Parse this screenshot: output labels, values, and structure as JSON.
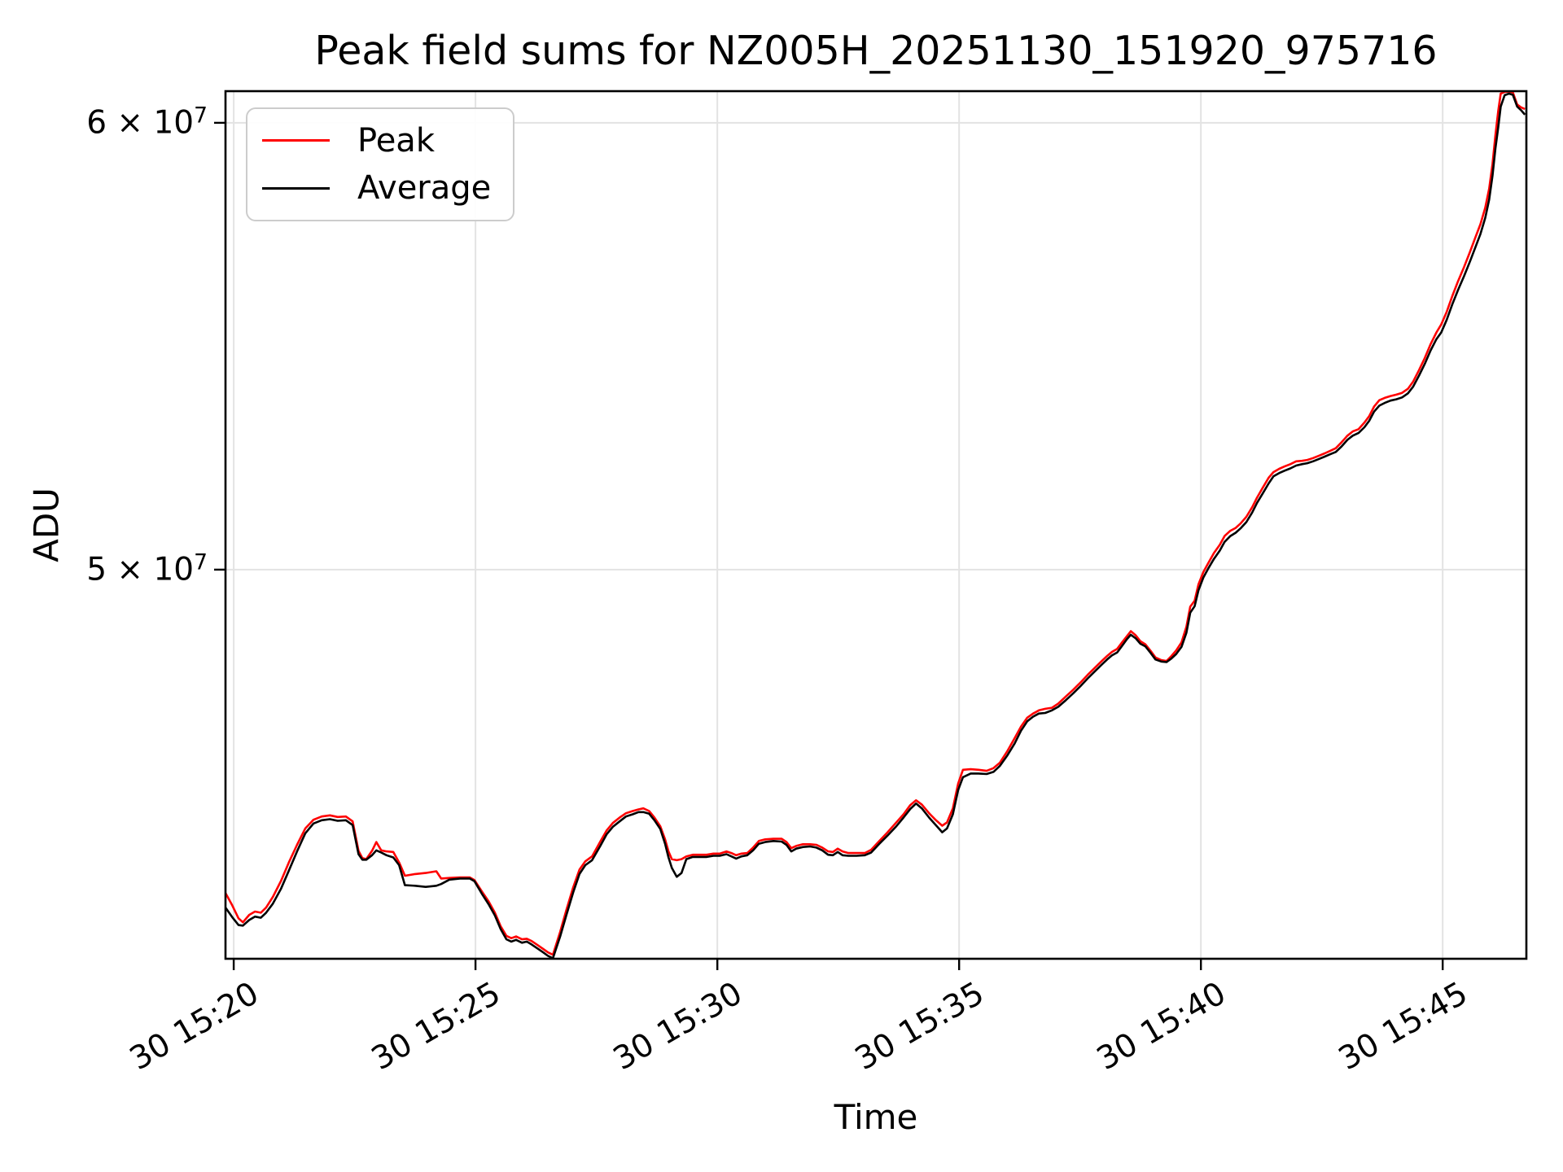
{
  "title": "Peak field sums for NZ005H_20251130_151920_975716",
  "legend": {
    "items": [
      {
        "label": "Peak",
        "color": "#ff0000"
      },
      {
        "label": "Average",
        "color": "#000000"
      }
    ]
  },
  "axes": {
    "xlabel": "Time",
    "ylabel": "ADU",
    "xticks": [
      {
        "t": 20,
        "label": "30 15:20"
      },
      {
        "t": 25,
        "label": "30 15:25"
      },
      {
        "t": 30,
        "label": "30 15:30"
      },
      {
        "t": 35,
        "label": "30 15:35"
      },
      {
        "t": 40,
        "label": "30 15:40"
      },
      {
        "t": 45,
        "label": "30 15:45"
      }
    ],
    "yticks": [
      {
        "v_e7": 6.0,
        "base": "6 × 10",
        "exp": "7"
      },
      {
        "v_e7": 5.0,
        "base": "5 × 10",
        "exp": "7"
      }
    ]
  },
  "colors": {
    "grid": "#e3e3e3",
    "peak": "#ff0000",
    "average": "#000000"
  },
  "chart_data": {
    "type": "line",
    "title": "Peak field sums for NZ005H_20251130_151920_975716",
    "xlabel": "Time",
    "ylabel": "ADU",
    "x_unit": "minutes after 15:00 on day 30",
    "y_unit": "ADU × 1e7",
    "ylog": true,
    "grid": true,
    "legend_position": "upper left",
    "xlim": [
      19.83,
      46.73
    ],
    "ylim_e7": [
      4.266,
      6.078
    ],
    "x": [
      19.83,
      19.97,
      20.1,
      20.19,
      20.32,
      20.44,
      20.56,
      20.67,
      20.81,
      20.98,
      21.14,
      21.31,
      21.48,
      21.65,
      21.82,
      21.99,
      22.15,
      22.32,
      22.46,
      22.58,
      22.66,
      22.74,
      22.86,
      22.95,
      23.05,
      23.16,
      23.3,
      23.42,
      23.54,
      23.75,
      23.97,
      24.19,
      24.29,
      24.46,
      24.68,
      24.88,
      24.98,
      25.13,
      25.27,
      25.4,
      25.52,
      25.64,
      25.74,
      25.84,
      25.96,
      26.06,
      26.16,
      26.28,
      26.4,
      26.5,
      26.6,
      26.75,
      26.88,
      27.02,
      27.15,
      27.27,
      27.41,
      27.58,
      27.71,
      27.84,
      27.98,
      28.11,
      28.25,
      28.37,
      28.47,
      28.59,
      28.7,
      28.82,
      28.92,
      28.99,
      29.06,
      29.16,
      29.26,
      29.36,
      29.49,
      29.65,
      29.78,
      29.92,
      30.05,
      30.19,
      30.29,
      30.39,
      30.5,
      30.62,
      30.74,
      30.86,
      30.99,
      31.16,
      31.33,
      31.43,
      31.53,
      31.63,
      31.77,
      31.92,
      32.05,
      32.17,
      32.29,
      32.39,
      32.49,
      32.59,
      32.71,
      32.88,
      33.05,
      33.18,
      33.35,
      33.52,
      33.69,
      33.85,
      33.99,
      34.11,
      34.23,
      34.38,
      34.51,
      34.65,
      34.75,
      34.87,
      34.98,
      35.08,
      35.24,
      35.4,
      35.57,
      35.71,
      35.84,
      35.99,
      36.15,
      36.28,
      36.41,
      36.53,
      36.65,
      36.78,
      36.92,
      37.05,
      37.21,
      37.36,
      37.51,
      37.66,
      37.81,
      37.95,
      38.06,
      38.16,
      38.27,
      38.37,
      38.47,
      38.55,
      38.65,
      38.75,
      38.85,
      38.96,
      39.06,
      39.18,
      39.29,
      39.39,
      39.49,
      39.6,
      39.7,
      39.78,
      39.87,
      39.95,
      40.05,
      40.15,
      40.27,
      40.39,
      40.49,
      40.61,
      40.72,
      40.82,
      40.94,
      41.06,
      41.16,
      41.28,
      41.4,
      41.5,
      41.62,
      41.73,
      41.85,
      41.97,
      42.09,
      42.2,
      42.32,
      42.44,
      42.56,
      42.67,
      42.79,
      42.91,
      43.03,
      43.14,
      43.26,
      43.38,
      43.48,
      43.58,
      43.69,
      43.8,
      43.92,
      44.04,
      44.16,
      44.28,
      44.39,
      44.51,
      44.63,
      44.75,
      44.87,
      44.97,
      45.08,
      45.2,
      45.32,
      45.44,
      45.56,
      45.67,
      45.78,
      45.88,
      45.96,
      46.03,
      46.09,
      46.15,
      46.2,
      46.28,
      46.37,
      46.45,
      46.54,
      46.62,
      46.7
    ],
    "series": [
      {
        "name": "Peak",
        "color": "#ff0000",
        "values_e7": [
          4.382,
          4.36,
          4.337,
          4.33,
          4.343,
          4.349,
          4.347,
          4.356,
          4.375,
          4.404,
          4.437,
          4.469,
          4.499,
          4.515,
          4.521,
          4.523,
          4.52,
          4.521,
          4.512,
          4.458,
          4.445,
          4.443,
          4.458,
          4.474,
          4.459,
          4.457,
          4.456,
          4.437,
          4.413,
          4.416,
          4.418,
          4.421,
          4.408,
          4.409,
          4.41,
          4.41,
          4.405,
          4.385,
          4.367,
          4.347,
          4.323,
          4.306,
          4.302,
          4.305,
          4.3,
          4.301,
          4.297,
          4.29,
          4.283,
          4.277,
          4.273,
          4.313,
          4.352,
          4.392,
          4.424,
          4.439,
          4.448,
          4.475,
          4.495,
          4.509,
          4.519,
          4.527,
          4.531,
          4.534,
          4.536,
          4.531,
          4.519,
          4.503,
          4.479,
          4.457,
          4.443,
          4.441,
          4.443,
          4.448,
          4.451,
          4.451,
          4.451,
          4.453,
          4.453,
          4.457,
          4.454,
          4.45,
          4.453,
          4.454,
          4.464,
          4.476,
          4.479,
          4.48,
          4.48,
          4.474,
          4.463,
          4.467,
          4.47,
          4.47,
          4.469,
          4.464,
          4.457,
          4.456,
          4.462,
          4.457,
          4.454,
          4.454,
          4.454,
          4.46,
          4.476,
          4.492,
          4.509,
          4.525,
          4.542,
          4.551,
          4.543,
          4.527,
          4.515,
          4.504,
          4.51,
          4.536,
          4.582,
          4.608,
          4.609,
          4.608,
          4.606,
          4.611,
          4.621,
          4.642,
          4.668,
          4.69,
          4.707,
          4.715,
          4.721,
          4.724,
          4.726,
          4.734,
          4.748,
          4.761,
          4.775,
          4.79,
          4.804,
          4.817,
          4.827,
          4.835,
          4.841,
          4.854,
          4.866,
          4.876,
          4.868,
          4.856,
          4.85,
          4.837,
          4.824,
          4.819,
          4.817,
          4.827,
          4.838,
          4.854,
          4.885,
          4.925,
          4.937,
          4.97,
          4.995,
          5.013,
          5.034,
          5.051,
          5.069,
          5.08,
          5.086,
          5.095,
          5.109,
          5.129,
          5.149,
          5.17,
          5.191,
          5.203,
          5.21,
          5.215,
          5.22,
          5.226,
          5.227,
          5.229,
          5.233,
          5.238,
          5.243,
          5.248,
          5.254,
          5.267,
          5.281,
          5.29,
          5.295,
          5.309,
          5.323,
          5.344,
          5.358,
          5.363,
          5.367,
          5.37,
          5.374,
          5.383,
          5.399,
          5.424,
          5.451,
          5.482,
          5.508,
          5.526,
          5.554,
          5.591,
          5.625,
          5.657,
          5.691,
          5.724,
          5.757,
          5.796,
          5.841,
          5.9,
          5.97,
          6.03,
          6.072,
          6.076,
          6.077,
          6.075,
          6.045,
          6.038,
          6.034
        ]
      },
      {
        "name": "Average",
        "color": "#000000",
        "values_e7": [
          4.356,
          4.339,
          4.325,
          4.324,
          4.334,
          4.34,
          4.338,
          4.347,
          4.363,
          4.39,
          4.422,
          4.457,
          4.49,
          4.508,
          4.514,
          4.516,
          4.513,
          4.514,
          4.505,
          4.452,
          4.442,
          4.442,
          4.45,
          4.459,
          4.455,
          4.45,
          4.446,
          4.432,
          4.396,
          4.395,
          4.393,
          4.395,
          4.398,
          4.406,
          4.408,
          4.408,
          4.403,
          4.381,
          4.362,
          4.342,
          4.318,
          4.3,
          4.296,
          4.299,
          4.294,
          4.296,
          4.291,
          4.284,
          4.277,
          4.271,
          4.267,
          4.305,
          4.343,
          4.383,
          4.416,
          4.432,
          4.441,
          4.467,
          4.488,
          4.502,
          4.512,
          4.521,
          4.525,
          4.529,
          4.529,
          4.526,
          4.514,
          4.498,
          4.471,
          4.446,
          4.427,
          4.411,
          4.418,
          4.443,
          4.447,
          4.447,
          4.447,
          4.449,
          4.449,
          4.452,
          4.448,
          4.444,
          4.448,
          4.45,
          4.459,
          4.471,
          4.474,
          4.476,
          4.475,
          4.469,
          4.457,
          4.462,
          4.465,
          4.466,
          4.464,
          4.459,
          4.451,
          4.45,
          4.456,
          4.45,
          4.449,
          4.449,
          4.45,
          4.455,
          4.471,
          4.486,
          4.502,
          4.519,
          4.535,
          4.545,
          4.536,
          4.519,
          4.506,
          4.492,
          4.499,
          4.525,
          4.57,
          4.594,
          4.601,
          4.601,
          4.6,
          4.604,
          4.615,
          4.634,
          4.658,
          4.682,
          4.7,
          4.709,
          4.715,
          4.716,
          4.721,
          4.728,
          4.741,
          4.754,
          4.768,
          4.783,
          4.797,
          4.81,
          4.82,
          4.828,
          4.834,
          4.847,
          4.86,
          4.869,
          4.862,
          4.851,
          4.846,
          4.833,
          4.82,
          4.816,
          4.815,
          4.822,
          4.831,
          4.845,
          4.873,
          4.913,
          4.926,
          4.958,
          4.984,
          5.002,
          5.022,
          5.039,
          5.057,
          5.069,
          5.076,
          5.085,
          5.098,
          5.118,
          5.138,
          5.158,
          5.179,
          5.194,
          5.201,
          5.206,
          5.211,
          5.217,
          5.22,
          5.222,
          5.226,
          5.231,
          5.236,
          5.241,
          5.246,
          5.258,
          5.272,
          5.281,
          5.287,
          5.299,
          5.313,
          5.333,
          5.346,
          5.352,
          5.357,
          5.36,
          5.364,
          5.373,
          5.388,
          5.412,
          5.438,
          5.468,
          5.493,
          5.508,
          5.536,
          5.572,
          5.605,
          5.636,
          5.669,
          5.701,
          5.734,
          5.772,
          5.815,
          5.872,
          5.938,
          5.99,
          6.04,
          6.068,
          6.072,
          6.069,
          6.04,
          6.031,
          6.02
        ]
      }
    ]
  }
}
